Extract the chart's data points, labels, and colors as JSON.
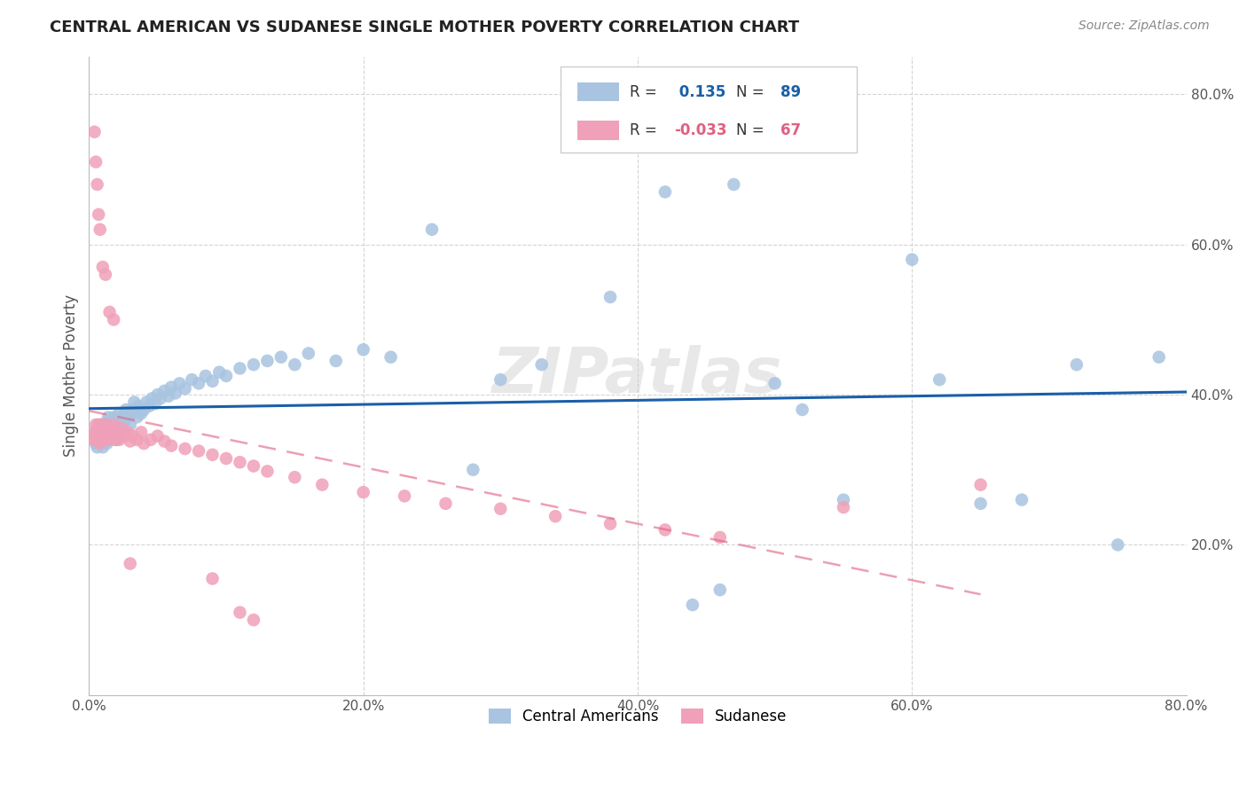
{
  "title": "CENTRAL AMERICAN VS SUDANESE SINGLE MOTHER POVERTY CORRELATION CHART",
  "source": "Source: ZipAtlas.com",
  "ylabel": "Single Mother Poverty",
  "r_central": 0.135,
  "n_central": 89,
  "r_sudanese": -0.033,
  "n_sudanese": 67,
  "xmin": 0.0,
  "xmax": 0.8,
  "ymin": 0.0,
  "ymax": 0.85,
  "yticks": [
    0.2,
    0.4,
    0.6,
    0.8
  ],
  "xticks": [
    0.0,
    0.2,
    0.4,
    0.6,
    0.8
  ],
  "color_central": "#a8c4e0",
  "color_sudanese": "#f0a0b8",
  "line_color_central": "#1a5fa8",
  "line_color_sudanese": "#e06080",
  "background_color": "#ffffff",
  "grid_color": "#d0d0d0",
  "watermark": "ZIPatlas",
  "central_x": [
    0.005,
    0.005,
    0.006,
    0.007,
    0.008,
    0.008,
    0.009,
    0.01,
    0.01,
    0.01,
    0.011,
    0.012,
    0.012,
    0.013,
    0.013,
    0.014,
    0.015,
    0.015,
    0.015,
    0.016,
    0.017,
    0.018,
    0.018,
    0.019,
    0.02,
    0.02,
    0.021,
    0.022,
    0.022,
    0.023,
    0.024,
    0.025,
    0.026,
    0.027,
    0.028,
    0.03,
    0.031,
    0.032,
    0.033,
    0.035,
    0.036,
    0.038,
    0.04,
    0.042,
    0.044,
    0.046,
    0.048,
    0.05,
    0.052,
    0.055,
    0.058,
    0.06,
    0.063,
    0.066,
    0.07,
    0.075,
    0.08,
    0.085,
    0.09,
    0.095,
    0.1,
    0.11,
    0.12,
    0.13,
    0.14,
    0.15,
    0.16,
    0.18,
    0.2,
    0.22,
    0.25,
    0.28,
    0.3,
    0.33,
    0.38,
    0.42,
    0.47,
    0.5,
    0.52,
    0.55,
    0.6,
    0.62,
    0.65,
    0.68,
    0.72,
    0.75,
    0.78,
    0.44,
    0.46
  ],
  "central_y": [
    0.335,
    0.35,
    0.33,
    0.34,
    0.36,
    0.345,
    0.338,
    0.33,
    0.345,
    0.36,
    0.355,
    0.34,
    0.35,
    0.335,
    0.36,
    0.37,
    0.34,
    0.355,
    0.365,
    0.35,
    0.345,
    0.36,
    0.37,
    0.355,
    0.34,
    0.36,
    0.35,
    0.365,
    0.375,
    0.36,
    0.37,
    0.355,
    0.365,
    0.38,
    0.37,
    0.36,
    0.375,
    0.38,
    0.39,
    0.37,
    0.385,
    0.375,
    0.38,
    0.39,
    0.385,
    0.395,
    0.388,
    0.4,
    0.395,
    0.405,
    0.398,
    0.41,
    0.402,
    0.415,
    0.408,
    0.42,
    0.415,
    0.425,
    0.418,
    0.43,
    0.425,
    0.435,
    0.44,
    0.445,
    0.45,
    0.44,
    0.455,
    0.445,
    0.46,
    0.45,
    0.62,
    0.3,
    0.42,
    0.44,
    0.53,
    0.67,
    0.68,
    0.415,
    0.38,
    0.26,
    0.58,
    0.42,
    0.255,
    0.26,
    0.44,
    0.2,
    0.45,
    0.12,
    0.14
  ],
  "sudanese_x": [
    0.003,
    0.004,
    0.005,
    0.005,
    0.006,
    0.006,
    0.007,
    0.007,
    0.007,
    0.008,
    0.008,
    0.008,
    0.009,
    0.009,
    0.01,
    0.01,
    0.01,
    0.01,
    0.01,
    0.01,
    0.011,
    0.011,
    0.012,
    0.012,
    0.013,
    0.013,
    0.014,
    0.015,
    0.015,
    0.016,
    0.017,
    0.018,
    0.019,
    0.02,
    0.021,
    0.022,
    0.024,
    0.026,
    0.028,
    0.03,
    0.032,
    0.035,
    0.038,
    0.04,
    0.045,
    0.05,
    0.055,
    0.06,
    0.07,
    0.08,
    0.09,
    0.1,
    0.11,
    0.12,
    0.13,
    0.15,
    0.17,
    0.2,
    0.23,
    0.26,
    0.3,
    0.34,
    0.38,
    0.42,
    0.46,
    0.55,
    0.65
  ],
  "sudanese_y": [
    0.34,
    0.35,
    0.36,
    0.345,
    0.34,
    0.355,
    0.35,
    0.36,
    0.34,
    0.345,
    0.335,
    0.35,
    0.34,
    0.36,
    0.345,
    0.35,
    0.36,
    0.34,
    0.355,
    0.345,
    0.35,
    0.36,
    0.34,
    0.355,
    0.345,
    0.36,
    0.35,
    0.34,
    0.355,
    0.345,
    0.35,
    0.36,
    0.34,
    0.35,
    0.345,
    0.34,
    0.355,
    0.345,
    0.35,
    0.338,
    0.345,
    0.34,
    0.35,
    0.335,
    0.34,
    0.345,
    0.338,
    0.332,
    0.328,
    0.325,
    0.32,
    0.315,
    0.31,
    0.305,
    0.298,
    0.29,
    0.28,
    0.27,
    0.265,
    0.255,
    0.248,
    0.238,
    0.228,
    0.22,
    0.21,
    0.25,
    0.28
  ],
  "sudanese_outliers_x": [
    0.004,
    0.005,
    0.006,
    0.007,
    0.008,
    0.01,
    0.012,
    0.015,
    0.018,
    0.03,
    0.09,
    0.11,
    0.12
  ],
  "sudanese_outliers_y": [
    0.75,
    0.71,
    0.68,
    0.64,
    0.62,
    0.57,
    0.56,
    0.51,
    0.5,
    0.175,
    0.155,
    0.11,
    0.1
  ]
}
